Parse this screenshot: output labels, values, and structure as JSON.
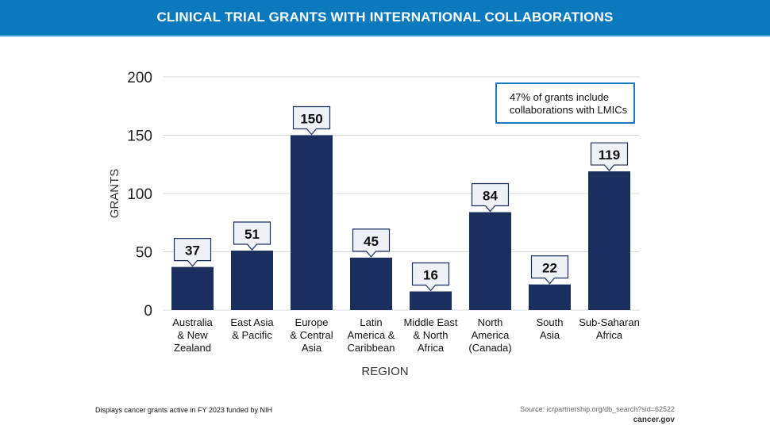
{
  "title": "CLINICAL TRIAL GRANTS WITH INTERNATIONAL COLLABORATIONS",
  "chart_data": {
    "type": "bar",
    "categories": [
      [
        "Australia",
        "& New",
        "Zealand"
      ],
      [
        "East Asia",
        "& Pacific"
      ],
      [
        "Europe",
        "& Central",
        "Asia"
      ],
      [
        "Latin",
        "America &",
        "Caribbean"
      ],
      [
        "Middle East",
        "& North",
        "Africa"
      ],
      [
        "North",
        "America",
        "(Canada)"
      ],
      [
        "South",
        "Asia"
      ],
      [
        "Sub-Saharan",
        "Africa"
      ]
    ],
    "values": [
      37,
      51,
      150,
      45,
      16,
      84,
      22,
      119
    ],
    "xlabel": "REGION",
    "ylabel": "GRANTS",
    "ylim": [
      0,
      200
    ],
    "yticks": [
      0,
      50,
      100,
      150,
      200
    ],
    "grid": true,
    "bar_color": "#1b2f5e",
    "label_box_color": "#eef1f6"
  },
  "annotation": [
    "47% of grants include",
    "collaborations with LMICs"
  ],
  "footer": {
    "note": "Displays cancer grants active in FY 2023 funded by NIH",
    "source": "Source: icrpartnership.org/db_search?sid=62522",
    "brand": "cancer.gov"
  },
  "colors": {
    "banner": "#0b79bd",
    "annotation_border": "#1a7abf"
  }
}
